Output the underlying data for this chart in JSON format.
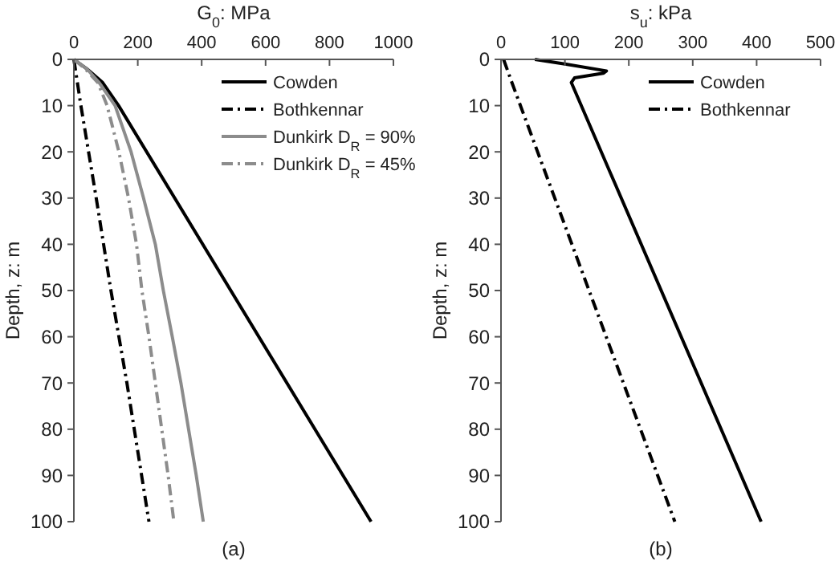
{
  "chart_data": [
    {
      "type": "line",
      "xlabel": "G$_{0}$: MPa",
      "ylabel": "Depth, z: m",
      "xlim": [
        0,
        1000
      ],
      "xticks": [
        0,
        200,
        400,
        600,
        800,
        1000
      ],
      "ylim": [
        100,
        0
      ],
      "yticks": [
        0,
        10,
        20,
        30,
        40,
        50,
        60,
        70,
        80,
        90,
        100
      ],
      "grid": false,
      "legend": "top right",
      "annotations": [
        "(a)"
      ],
      "series": [
        {
          "name": "Cowden",
          "color": "#000000",
          "line_style": "solid",
          "x": [
            0,
            40,
            90,
            140,
            930
          ],
          "values": [
            0,
            2,
            5,
            10,
            100
          ]
        },
        {
          "name": "Bothkennar",
          "color": "#000000",
          "line_style": "dashdot",
          "x": [
            0,
            22,
            70,
            116,
            166,
            235
          ],
          "values": [
            0,
            10,
            30,
            50,
            70,
            100
          ]
        },
        {
          "name": "Dunkirk D$_{R}$ = 90%",
          "color": "#8c8c8c",
          "line_style": "solid",
          "x": [
            0,
            40,
            79,
            129,
            179,
            218,
            255,
            280,
            308,
            335,
            359,
            383,
            405
          ],
          "values": [
            0,
            2,
            5,
            10,
            20,
            30,
            40,
            50,
            60,
            70,
            80,
            90,
            100
          ]
        },
        {
          "name": "Dunkirk D$_{R}$ = 45%",
          "color": "#8c8c8c",
          "line_style": "dashdot",
          "x": [
            0,
            35,
            75,
            104,
            141,
            171,
            196,
            213,
            235,
            255,
            275,
            295,
            313
          ],
          "values": [
            0,
            2,
            5,
            10,
            20,
            30,
            40,
            50,
            60,
            70,
            80,
            90,
            100
          ]
        }
      ]
    },
    {
      "type": "line",
      "xlabel": "s$_{u}$: kPa",
      "ylabel": "Depth, z: m",
      "xlim": [
        0,
        500
      ],
      "xticks": [
        0,
        100,
        200,
        300,
        400,
        500
      ],
      "ylim": [
        100,
        0
      ],
      "yticks": [
        0,
        10,
        20,
        30,
        40,
        50,
        60,
        70,
        80,
        90,
        100
      ],
      "grid": false,
      "legend": "top right",
      "annotations": [
        "(b)"
      ],
      "series": [
        {
          "name": "Cowden",
          "color": "#000000",
          "line_style": "solid",
          "x": [
            53,
            100,
            165,
            160,
            115,
            110,
            407
          ],
          "values": [
            0,
            1,
            2.5,
            3,
            4,
            5,
            100
          ]
        },
        {
          "name": "Bothkennar",
          "color": "#000000",
          "line_style": "dashdot",
          "x": [
            4,
            17,
            272
          ],
          "values": [
            0,
            5,
            100
          ]
        }
      ]
    }
  ]
}
